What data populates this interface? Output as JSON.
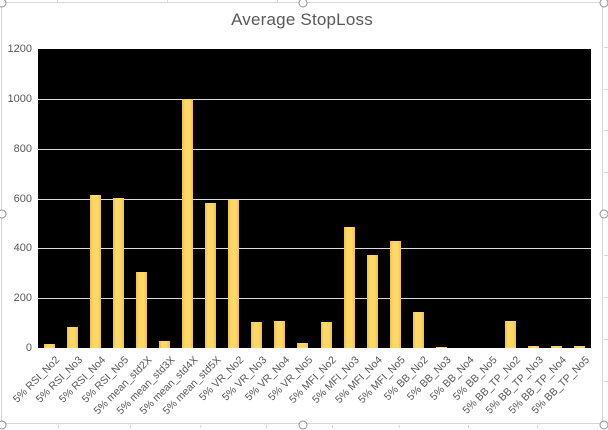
{
  "chart_data": {
    "type": "bar",
    "title": "Average StopLoss",
    "categories": [
      "5% RSI_No2",
      "5% RSI_No3",
      "5% RSI_No4",
      "5% RSI_No5",
      "5% mean_std2X",
      "5% mean_std3X",
      "5% mean_std4X",
      "5% mean_std5X",
      "5% VR_No2",
      "5% VR_No3",
      "5% VR_No4",
      "5% VR_No5",
      "5% MFI_No2",
      "5% MFI_No3",
      "5% MFI_No4",
      "5% MFI_No5",
      "5% BB_No2",
      "5% BB_No3",
      "5% BB_No4",
      "5% BB_No5",
      "5% BB_TP_No2",
      "5% BB_TP_No3",
      "5% BB_TP_No4",
      "5% BB_TP_No5"
    ],
    "values": [
      15,
      85,
      615,
      600,
      305,
      30,
      1000,
      580,
      595,
      105,
      110,
      20,
      105,
      485,
      375,
      430,
      145,
      5,
      0,
      0,
      110,
      10,
      10,
      10
    ],
    "xlabel": "",
    "ylabel": "",
    "ylim": [
      0,
      1200
    ],
    "yticks": [
      0,
      200,
      400,
      600,
      800,
      1000,
      1200
    ],
    "grid": true,
    "legend": false,
    "colors": {
      "bar": "#ffd966",
      "plot_background": "#000000",
      "gridline": "#dcdcdc",
      "text": "#595959",
      "chart_border": "#d6d6d6"
    }
  },
  "selection": {
    "state": "chart selected (8 resize handles)"
  }
}
